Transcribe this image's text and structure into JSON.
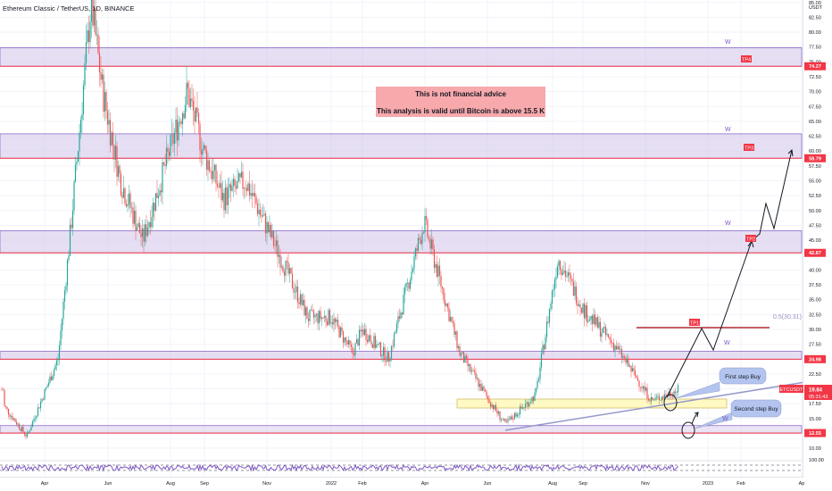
{
  "header": {
    "title": "Ethereum Classic / TetherUS, 1D, BINANCE"
  },
  "notice": {
    "line1": "This is not financial advice",
    "line2": "This analysis is valid until Bitcoin is above 15.5 K",
    "bg_color": "#f7a9ac"
  },
  "price_axis": {
    "unit": "USDT",
    "ticks": [
      "85.00",
      "82.50",
      "80.00",
      "77.50",
      "75.00",
      "72.50",
      "70.00",
      "67.50",
      "65.00",
      "62.50",
      "60.00",
      "57.50",
      "55.00",
      "52.50",
      "50.00",
      "47.50",
      "45.00",
      "42.50",
      "40.00",
      "37.50",
      "35.00",
      "32.50",
      "30.00",
      "27.50",
      "25.00",
      "22.50",
      "20.00",
      "17.50",
      "15.00",
      "12.50",
      "10.00"
    ],
    "osc_tick": "100.00",
    "current_symbol": "ETCUSDT",
    "current_price": "19.84",
    "countdown": "05:31:43"
  },
  "time_axis": {
    "labels": [
      "Apr",
      "Jun",
      "Aug",
      "Sep",
      "Nov",
      "2022",
      "Feb",
      "Apr",
      "Jun",
      "Aug",
      "Sep",
      "Nov",
      "2023",
      "Feb",
      "Ap"
    ]
  },
  "levels": {
    "tp4": "74.27",
    "tp3": "58.79",
    "tp2": "42.87",
    "tp1": "24.98",
    "support": "12.55"
  },
  "target_labels": {
    "tp4": "TP4",
    "tp3": "TP3",
    "tp2": "TP2",
    "tp1": "TP1"
  },
  "fib_label": "0.5(30.31)",
  "wave_marks": [
    "W",
    "W",
    "W",
    "W",
    "W"
  ],
  "callouts": {
    "first_buy": "First step Buy",
    "second_buy": "Second step Buy"
  },
  "colors": {
    "up": "#26a69a",
    "down": "#ef5350",
    "zone_fill": "#d1c4e9",
    "zone_border": "#7e57c2",
    "level_line": "#f23645",
    "callout_fill": "#b3c5ef",
    "path_line": "#131722",
    "trend_line": "#9598c9",
    "yellow_zone": "#fff9c4"
  },
  "chart_data": {
    "type": "candlestick",
    "title": "Ethereum Classic / TetherUS, 1D, BINANCE",
    "ylabel": "USDT",
    "x_labels": [
      "Apr",
      "Jun",
      "Aug",
      "Sep",
      "Nov",
      "2022",
      "Feb",
      "Apr",
      "Jun",
      "Aug",
      "Sep",
      "Nov",
      "2023",
      "Feb",
      "Ap"
    ],
    "ylim": [
      7.8,
      86.5
    ],
    "price_trajectory": [
      [
        "start",
        17
      ],
      [
        "Mar",
        12
      ],
      [
        "Apr",
        25
      ],
      [
        "mid-Apr",
        45
      ],
      [
        "May",
        85
      ],
      [
        "late-May",
        70
      ],
      [
        "Jun",
        55
      ],
      [
        "Jul",
        45
      ],
      [
        "Aug",
        70
      ],
      [
        "Sep",
        60
      ],
      [
        "Oct",
        52
      ],
      [
        "Nov",
        55
      ],
      [
        "Dec",
        32
      ],
      [
        "2022",
        32
      ],
      [
        "Jan",
        26
      ],
      [
        "Feb",
        30
      ],
      [
        "Mar",
        25
      ],
      [
        "Apr",
        48
      ],
      [
        "May",
        26
      ],
      [
        "Jun",
        18
      ],
      [
        "late-Jun",
        14
      ],
      [
        "Jul",
        19
      ],
      [
        "Aug",
        42
      ],
      [
        "Sep",
        33
      ],
      [
        "Oct",
        27
      ],
      [
        "Nov",
        18
      ],
      [
        "latest",
        19.84
      ]
    ],
    "resistance_zones": [
      [
        74.27,
        77.4
      ],
      [
        58.79,
        62.9
      ],
      [
        42.87,
        46.6
      ],
      [
        24.98,
        26.3
      ]
    ],
    "support_zone": [
      12.55,
      13.8
    ],
    "horizontal_levels": [
      74.27,
      58.79,
      42.87,
      24.98,
      12.55
    ],
    "fib_level": 30.31,
    "projected_path": [
      [
        "Nov",
        17.5
      ],
      [
        "late-Nov",
        30
      ],
      [
        "Dec",
        26
      ],
      [
        "mid-Jan",
        45
      ],
      [
        "Jan",
        47
      ],
      [
        "Feb",
        52
      ],
      [
        "late-Feb",
        47
      ],
      [
        "Mar",
        60
      ]
    ]
  }
}
